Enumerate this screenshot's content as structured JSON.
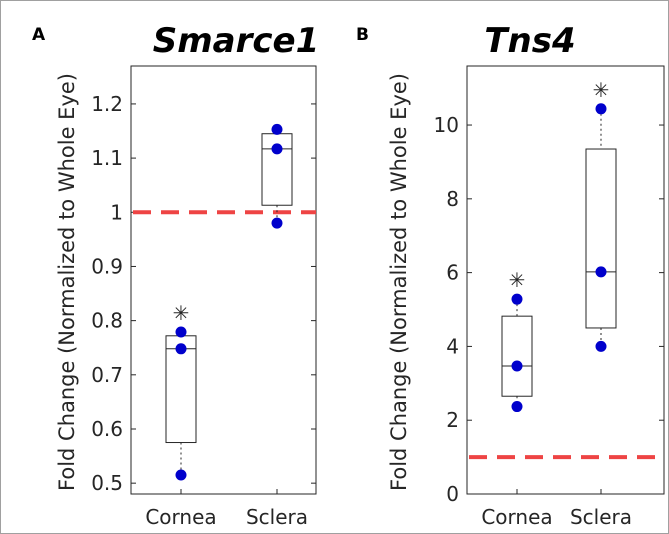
{
  "ylabel": "Fold Change (Normalized to Whole Eye)",
  "chart_data": [
    {
      "type": "box",
      "panel_label": "A",
      "title": "Smarce1",
      "categories": [
        "Cornea",
        "Sclera"
      ],
      "ylabel": "Fold Change (Normalized to Whole Eye)",
      "ylim": [
        0.48,
        1.27
      ],
      "yticks": [
        0.5,
        0.6,
        0.7,
        0.8,
        0.9,
        1,
        1.1,
        1.2
      ],
      "ytick_labels": [
        "0.5",
        "0.6",
        "0.7",
        "0.8",
        "0.9",
        "1",
        "1.1",
        "1.2"
      ],
      "reference_line": 1.0,
      "boxes": [
        {
          "category": "Cornea",
          "whisker_low": 0.515,
          "q1": 0.575,
          "median": 0.748,
          "q3": 0.772,
          "whisker_high": 0.779,
          "points": [
            0.515,
            0.748,
            0.779
          ],
          "significant": true
        },
        {
          "category": "Sclera",
          "whisker_low": 0.98,
          "q1": 1.013,
          "median": 1.117,
          "q3": 1.145,
          "whisker_high": 1.153,
          "points": [
            0.98,
            1.117,
            1.153
          ],
          "significant": false
        }
      ],
      "significance_marker": "✳"
    },
    {
      "type": "box",
      "panel_label": "B",
      "title": "Tns4",
      "categories": [
        "Cornea",
        "Sclera"
      ],
      "ylabel": "Fold Change (Normalized to Whole Eye)",
      "ylim": [
        0,
        11.6
      ],
      "yticks": [
        0,
        2,
        4,
        6,
        8,
        10
      ],
      "ytick_labels": [
        "0",
        "2",
        "4",
        "6",
        "8",
        "10"
      ],
      "reference_line": 1.0,
      "boxes": [
        {
          "category": "Cornea",
          "whisker_low": 2.37,
          "q1": 2.65,
          "median": 3.47,
          "q3": 4.82,
          "whisker_high": 5.28,
          "points": [
            2.37,
            3.47,
            5.28
          ],
          "significant": true
        },
        {
          "category": "Sclera",
          "whisker_low": 4.0,
          "q1": 4.5,
          "median": 6.02,
          "q3": 9.35,
          "whisker_high": 10.44,
          "points": [
            4.0,
            6.02,
            10.44
          ],
          "significant": true
        }
      ],
      "significance_marker": "✳"
    }
  ],
  "colors": {
    "point": "#0000cc",
    "reference_line": "#ee4444",
    "box": "#262626",
    "border": "#999999"
  }
}
